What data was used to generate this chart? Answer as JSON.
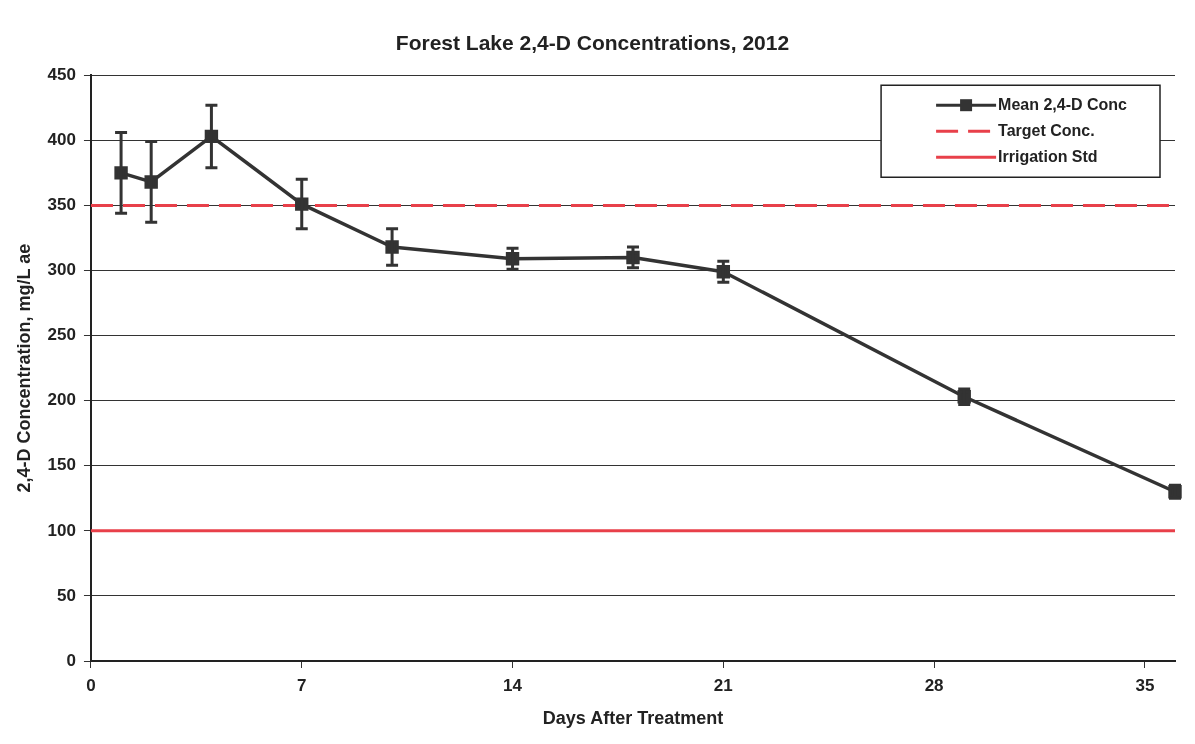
{
  "chart_data": {
    "type": "line",
    "title": "Forest Lake 2,4-D Concentrations, 2012",
    "xlabel": "Days After Treatment",
    "ylabel": "2,4-D Concentration, mg/L ae",
    "x": [
      1,
      2,
      4,
      7,
      10,
      14,
      18,
      21,
      29,
      36
    ],
    "series": [
      {
        "name": "Mean 2,4-D Conc",
        "color": "#333333",
        "values": [
          375,
          368,
          403,
          351,
          318,
          309,
          310,
          299,
          203,
          130
        ],
        "errors": [
          31,
          31,
          24,
          19,
          14,
          8,
          8,
          8,
          6,
          5
        ]
      }
    ],
    "ref_lines": [
      {
        "axis": "y",
        "value": 350,
        "label": "Target Conc.",
        "color": "#e8404a",
        "line_style": "dashed"
      },
      {
        "axis": "y",
        "value": 100,
        "label": "Irrigation Std",
        "color": "#e8404a",
        "line_style": "solid"
      }
    ],
    "xlim": [
      0,
      36
    ],
    "xticks": [
      0,
      7,
      14,
      21,
      28,
      35
    ],
    "ylim": [
      0,
      450
    ],
    "yticks": [
      0,
      50,
      100,
      150,
      200,
      250,
      300,
      350,
      400,
      450
    ],
    "grid": "y",
    "legend": "top right",
    "marker": "square",
    "line_style": "solid"
  }
}
